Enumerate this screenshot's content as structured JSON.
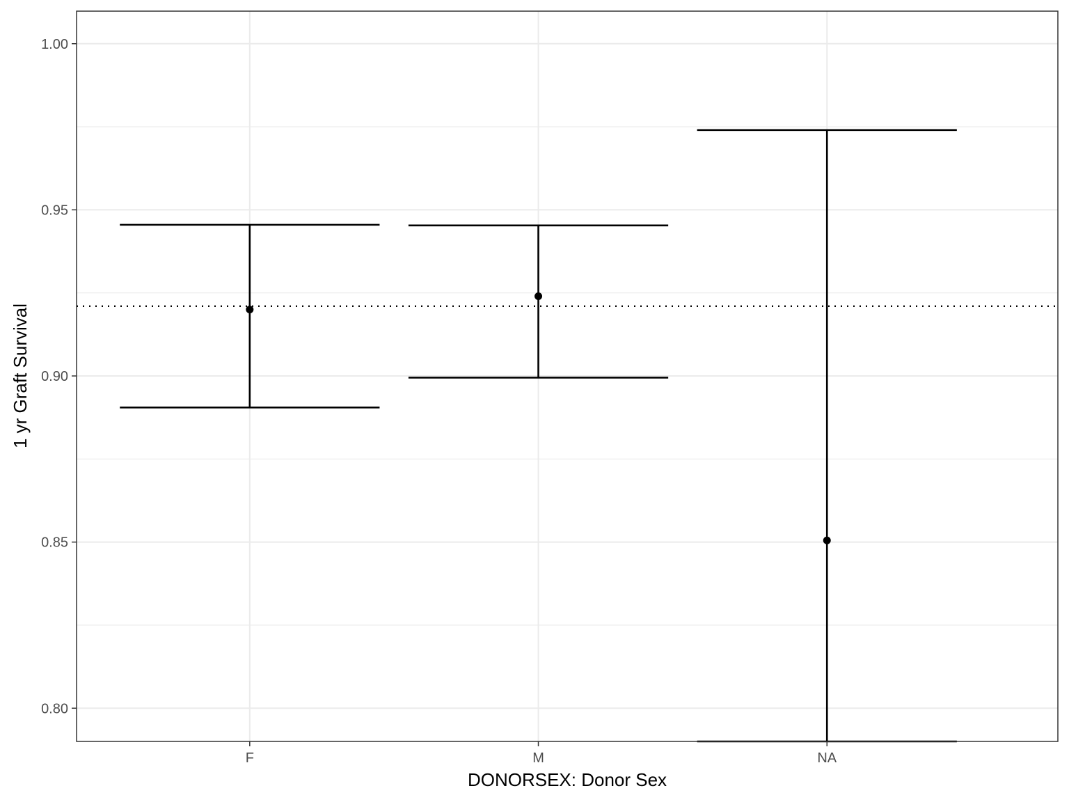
{
  "chart_data": {
    "type": "errorbar",
    "title": "",
    "xlabel": "DONORSEX: Donor Sex",
    "ylabel": "1 yr Graft Survival",
    "categories": [
      "F",
      "M",
      "NA"
    ],
    "points": [
      {
        "category": "F",
        "estimate": 0.92,
        "lower": 0.8905,
        "upper": 0.9455
      },
      {
        "category": "M",
        "estimate": 0.924,
        "lower": 0.8995,
        "upper": 0.9453
      },
      {
        "category": "NA",
        "estimate": 0.8505,
        "lower": 0.79,
        "upper": 0.974
      }
    ],
    "reference_line": {
      "y": 0.921,
      "style": "dotted"
    },
    "ylim": [
      0.79,
      1.0098
    ],
    "yticks": [
      0.8,
      0.85,
      0.9,
      0.95,
      1.0
    ],
    "ytick_labels": [
      "0.80",
      "0.85",
      "0.90",
      "0.95",
      "1.00"
    ],
    "y_minor_ticks": [
      0.825,
      0.875,
      0.925,
      0.975
    ],
    "grid": true,
    "legend": "none"
  }
}
